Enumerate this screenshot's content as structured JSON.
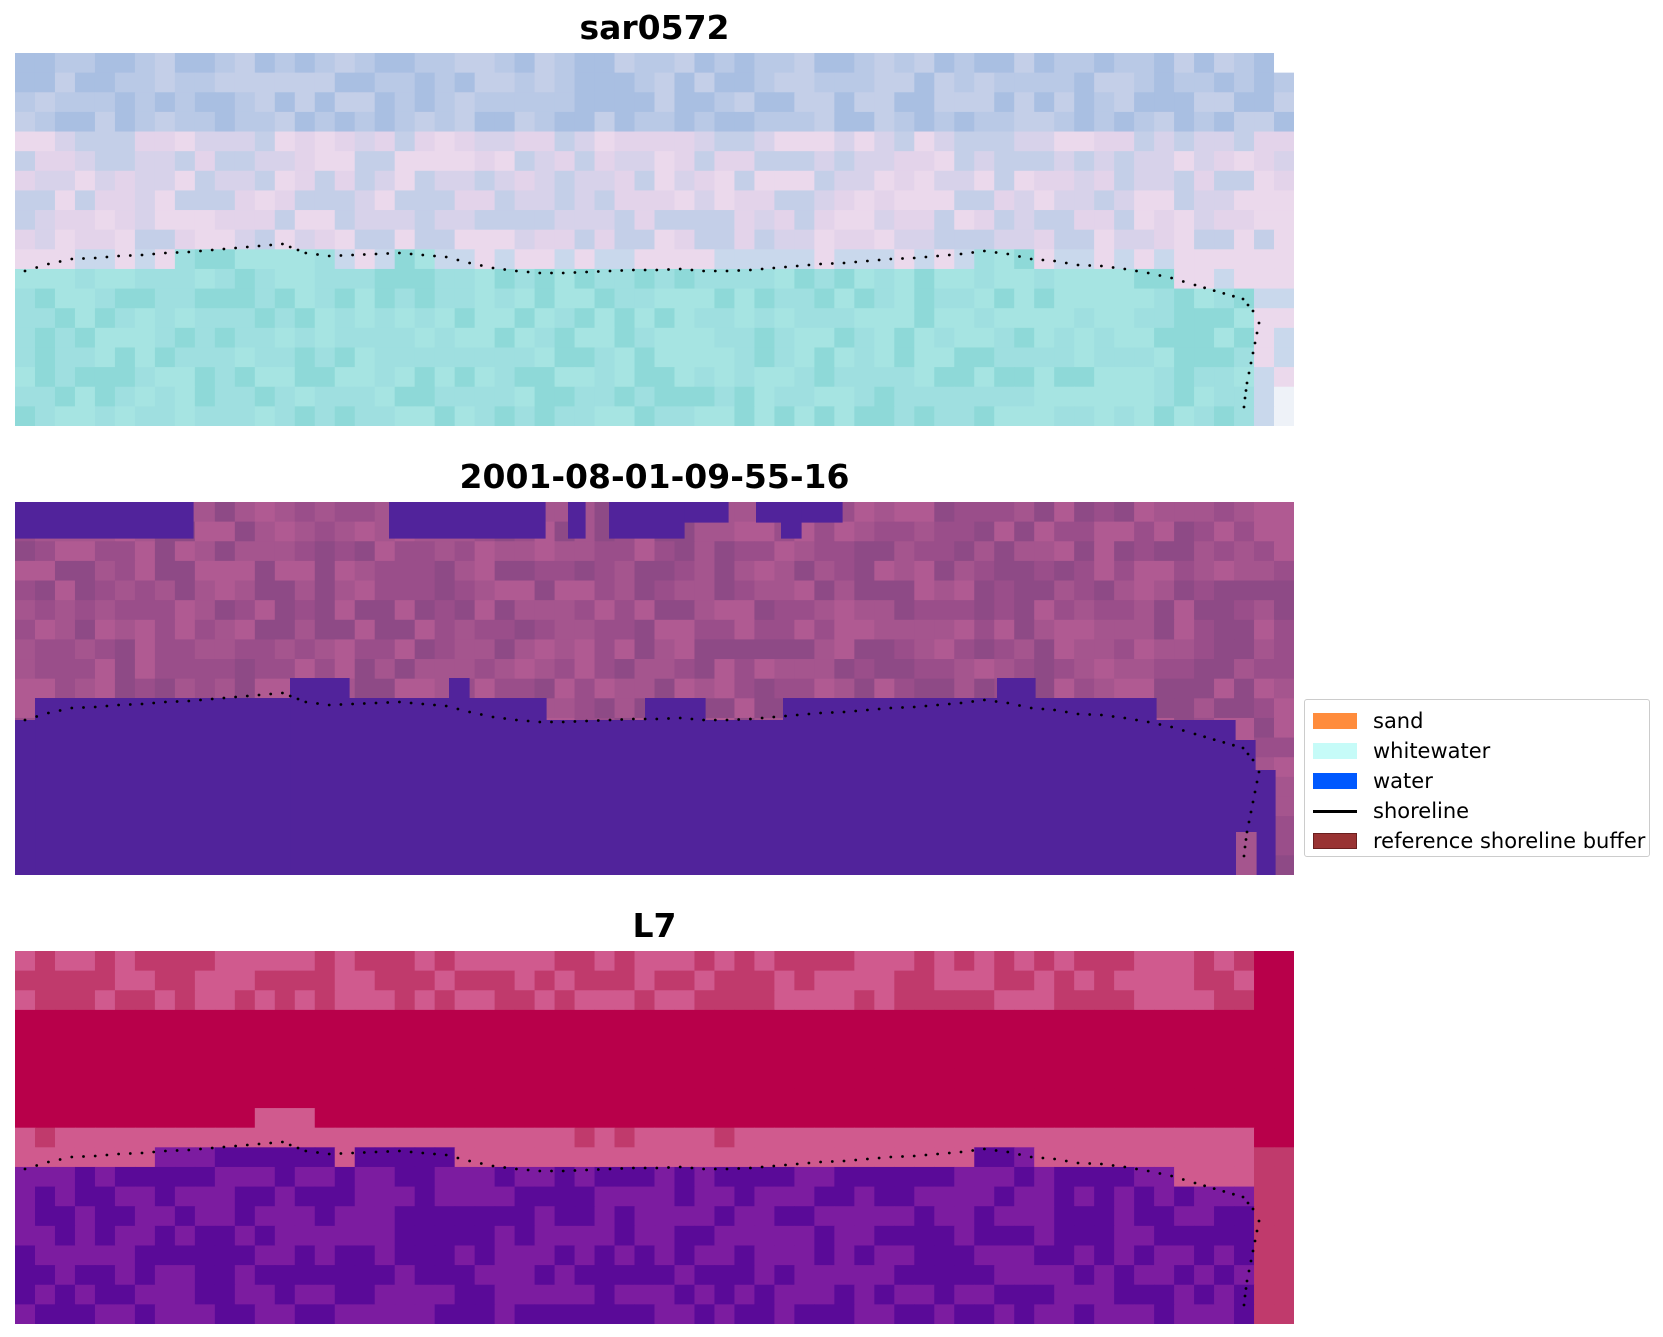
{
  "panels": [
    {
      "title": "sar0572",
      "base_palette": [
        "#b9c9e6",
        "#a9bfe2",
        "#c4cfe8",
        "#d7d2ea",
        "#e3d3ea",
        "#ebd9ec",
        "#c9d8ec",
        "#9fdfe0",
        "#8ed9d8",
        "#a6e4e2"
      ]
    },
    {
      "title": "2001-08-01-09-55-16",
      "base_palette": [
        "#9a4e8a",
        "#a5558e",
        "#b05a92",
        "#8e4a86",
        "#51239b"
      ]
    },
    {
      "title": "L7",
      "base_palette": [
        "#c03a6c",
        "#b8004a",
        "#d05a8e",
        "#7c1ca0",
        "#5a0a98"
      ]
    }
  ],
  "legend": [
    {
      "label": "sand",
      "color": "#ff8c3c",
      "kind": "patch"
    },
    {
      "label": "whitewater",
      "color": "#c6fbf8",
      "kind": "patch"
    },
    {
      "label": "water",
      "color": "#0059ff",
      "kind": "patch"
    },
    {
      "label": "shoreline",
      "color": "#000000",
      "kind": "line"
    },
    {
      "label": "reference shoreline buffer",
      "color": "#993333",
      "kind": "patch"
    }
  ]
}
